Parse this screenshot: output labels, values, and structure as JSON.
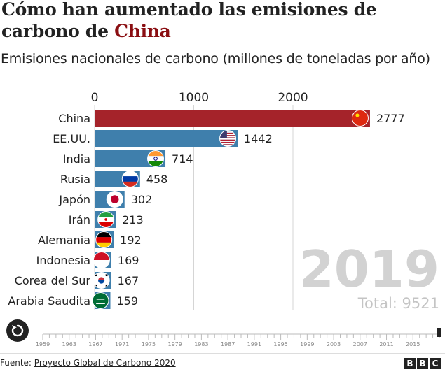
{
  "header": {
    "title_line1": "Cómo han aumentado las emisiones de",
    "title_line2_prefix": "carbono de ",
    "title_highlight": "China",
    "subtitle": "Emisiones nacionales de carbono (millones de toneladas por año)"
  },
  "chart_data": {
    "type": "bar",
    "orientation": "horizontal",
    "xlim": [
      0,
      3000
    ],
    "x_ticks": [
      0,
      1000,
      2000
    ],
    "grid": true,
    "categories": [
      "China",
      "EE.UU.",
      "India",
      "Rusia",
      "Japón",
      "Irán",
      "Alemania",
      "Indonesia",
      "Corea del Sur",
      "Arabia Saudita"
    ],
    "values": [
      2777,
      1442,
      714,
      458,
      302,
      213,
      192,
      169,
      167,
      159
    ],
    "flags": [
      "china-flag",
      "usa-flag",
      "india-flag",
      "russia-flag",
      "japan-flag",
      "iran-flag",
      "germany-flag",
      "indonesia-flag",
      "south-korea-flag",
      "saudi-arabia-flag"
    ],
    "colors": {
      "highlight": "#a5232a",
      "default": "#3f7fac"
    },
    "highlight_category": "China",
    "year_label": "2019",
    "total_label": "Total: 9521",
    "timeline": {
      "ticks": [
        "1959",
        "1963",
        "1967",
        "1971",
        "1975",
        "1979",
        "1983",
        "1987",
        "1991",
        "1995",
        "1999",
        "2003",
        "2007",
        "2011",
        "2015"
      ],
      "start": 1959,
      "end": 2019,
      "current": 2019
    }
  },
  "controls": {
    "replay_icon": "replay-icon"
  },
  "footer": {
    "source_prefix": "Fuente: ",
    "source_link": "Proyecto Global de Carbono 2020",
    "logo": [
      "B",
      "B",
      "C"
    ]
  }
}
